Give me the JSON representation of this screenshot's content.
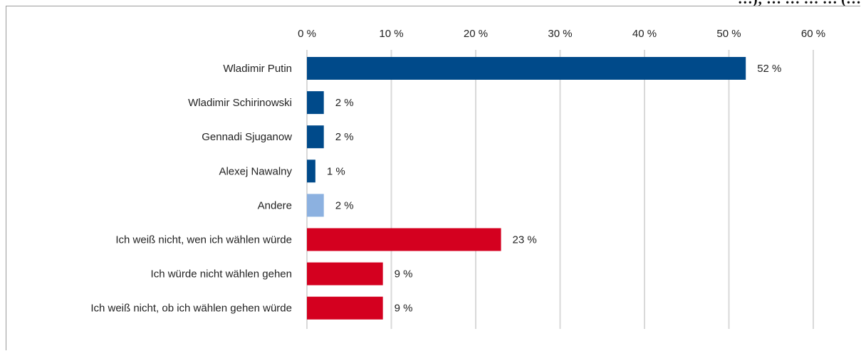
{
  "chart_data": {
    "type": "bar",
    "orientation": "horizontal",
    "title": "…); …   …  …  …          (…",
    "categories": [
      "Wladimir Putin",
      "Wladimir Schirinowski",
      "Gennadi Sjuganow",
      "Alexej Nawalny",
      "Andere",
      "Ich weiß nicht, wen ich wählen würde",
      "Ich würde nicht wählen gehen",
      "Ich weiß nicht, ob ich wählen gehen würde"
    ],
    "values": [
      52,
      2,
      2,
      1,
      2,
      23,
      9,
      9
    ],
    "value_labels": [
      "52 %",
      "2 %",
      "2 %",
      "1 %",
      "2 %",
      "23 %",
      "9 %",
      "9 %"
    ],
    "bar_colors": [
      "#004a8a",
      "#004a8a",
      "#004a8a",
      "#004a8a",
      "#8cb1e0",
      "#d4001f",
      "#d4001f",
      "#d4001f"
    ],
    "xlim": [
      0,
      60
    ],
    "x_ticks": [
      0,
      10,
      20,
      30,
      40,
      50,
      60
    ],
    "x_tick_labels": [
      "0 %",
      "10 %",
      "20 %",
      "30 %",
      "40 %",
      "50 %",
      "60 %"
    ],
    "axis_position": "top",
    "grid": true,
    "gridline_color": "#d9d9d9",
    "legend": "none"
  }
}
